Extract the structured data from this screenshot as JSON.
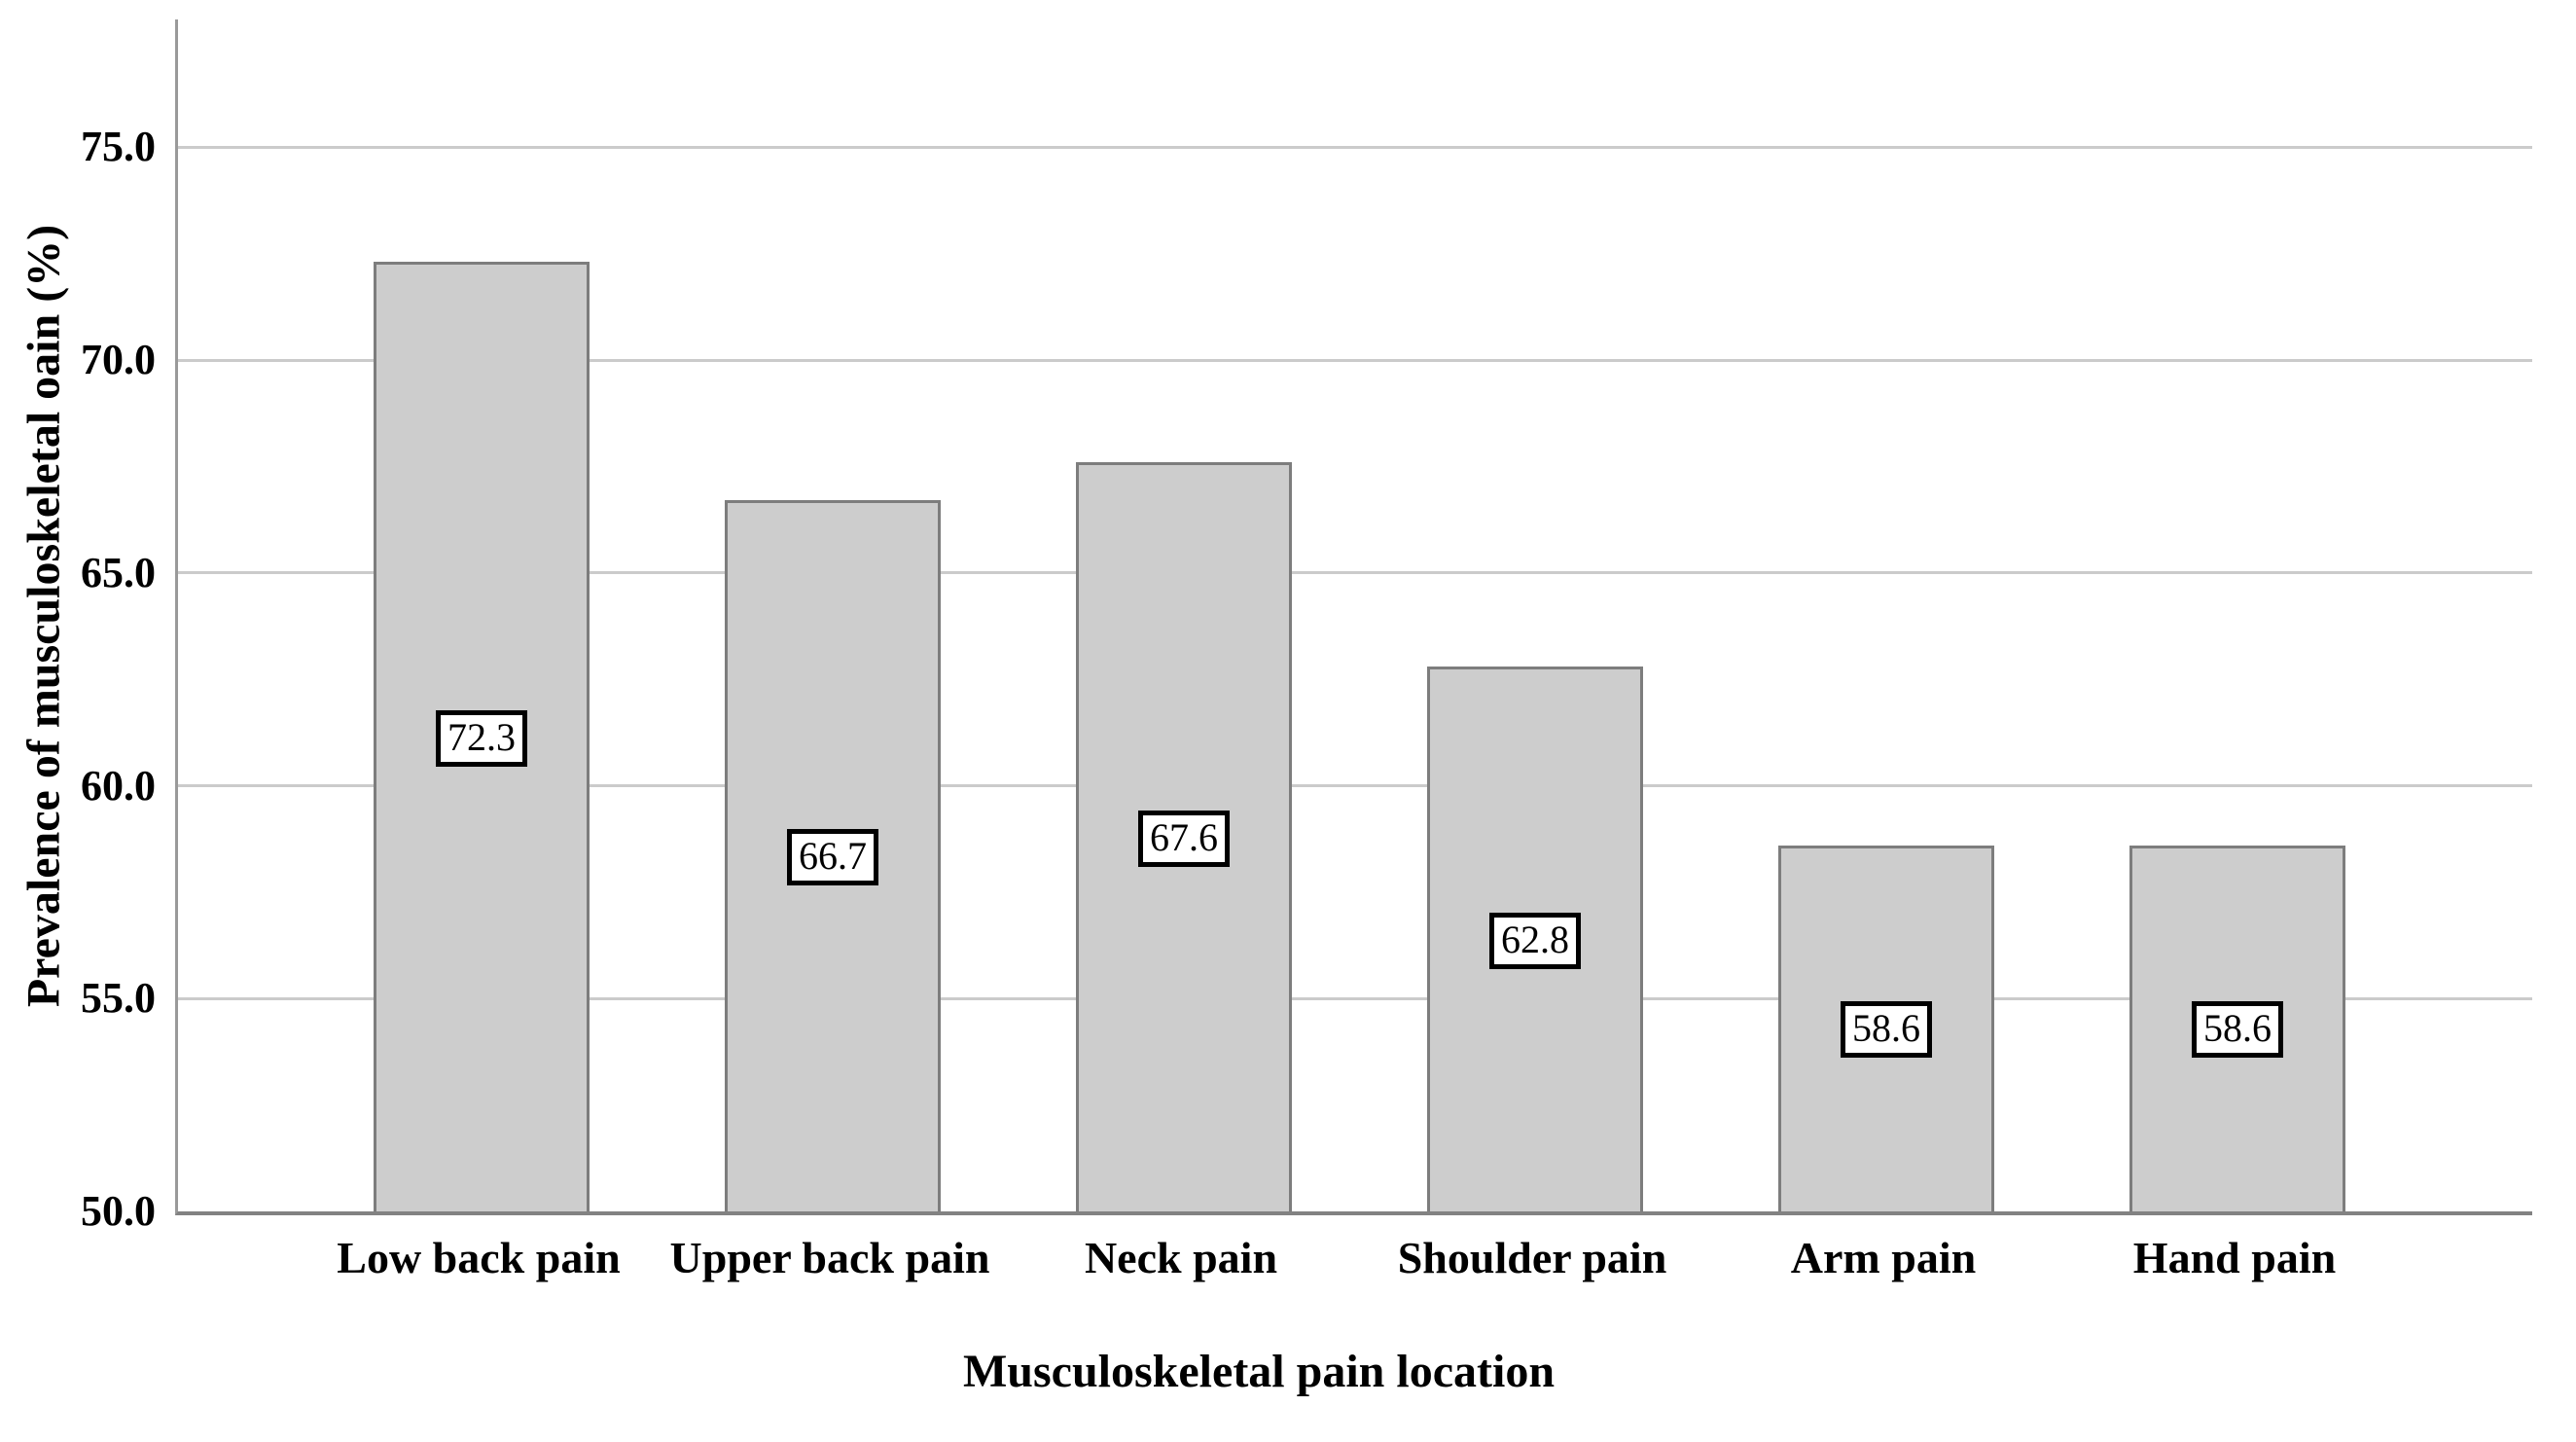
{
  "chart_data": {
    "type": "bar",
    "categories": [
      "Low back pain",
      "Upper back pain",
      "Neck pain",
      "Shoulder pain",
      "Arm pain",
      "Hand pain"
    ],
    "values": [
      72.3,
      66.7,
      67.6,
      62.8,
      58.6,
      58.6
    ],
    "bar_labels": [
      "72.3",
      "66.7",
      "67.6",
      "62.8",
      "58.6",
      "58.6"
    ],
    "title": "",
    "xlabel": "Musculoskeletal pain location",
    "ylabel": "Prevalence of musculoskeletal oain (%)",
    "ylim": [
      50.0,
      78.0
    ],
    "ytick_labels": [
      "50.0",
      "55.0",
      "60.0",
      "65.0",
      "70.0",
      "75.0"
    ],
    "ytick_values": [
      50,
      55,
      60,
      65,
      70,
      75
    ],
    "grid": true,
    "legend": "none",
    "colors": {
      "bar_fill": "#cdcdcd",
      "bar_border": "#7d7d7d",
      "gridline": "#cbcbcb",
      "y_axis_line": "#9a9a9a",
      "x_axis_line": "#828282",
      "value_box_background": "#ffffff",
      "value_box_border": "#000000",
      "text": "#000000",
      "background": "#ffffff"
    }
  }
}
